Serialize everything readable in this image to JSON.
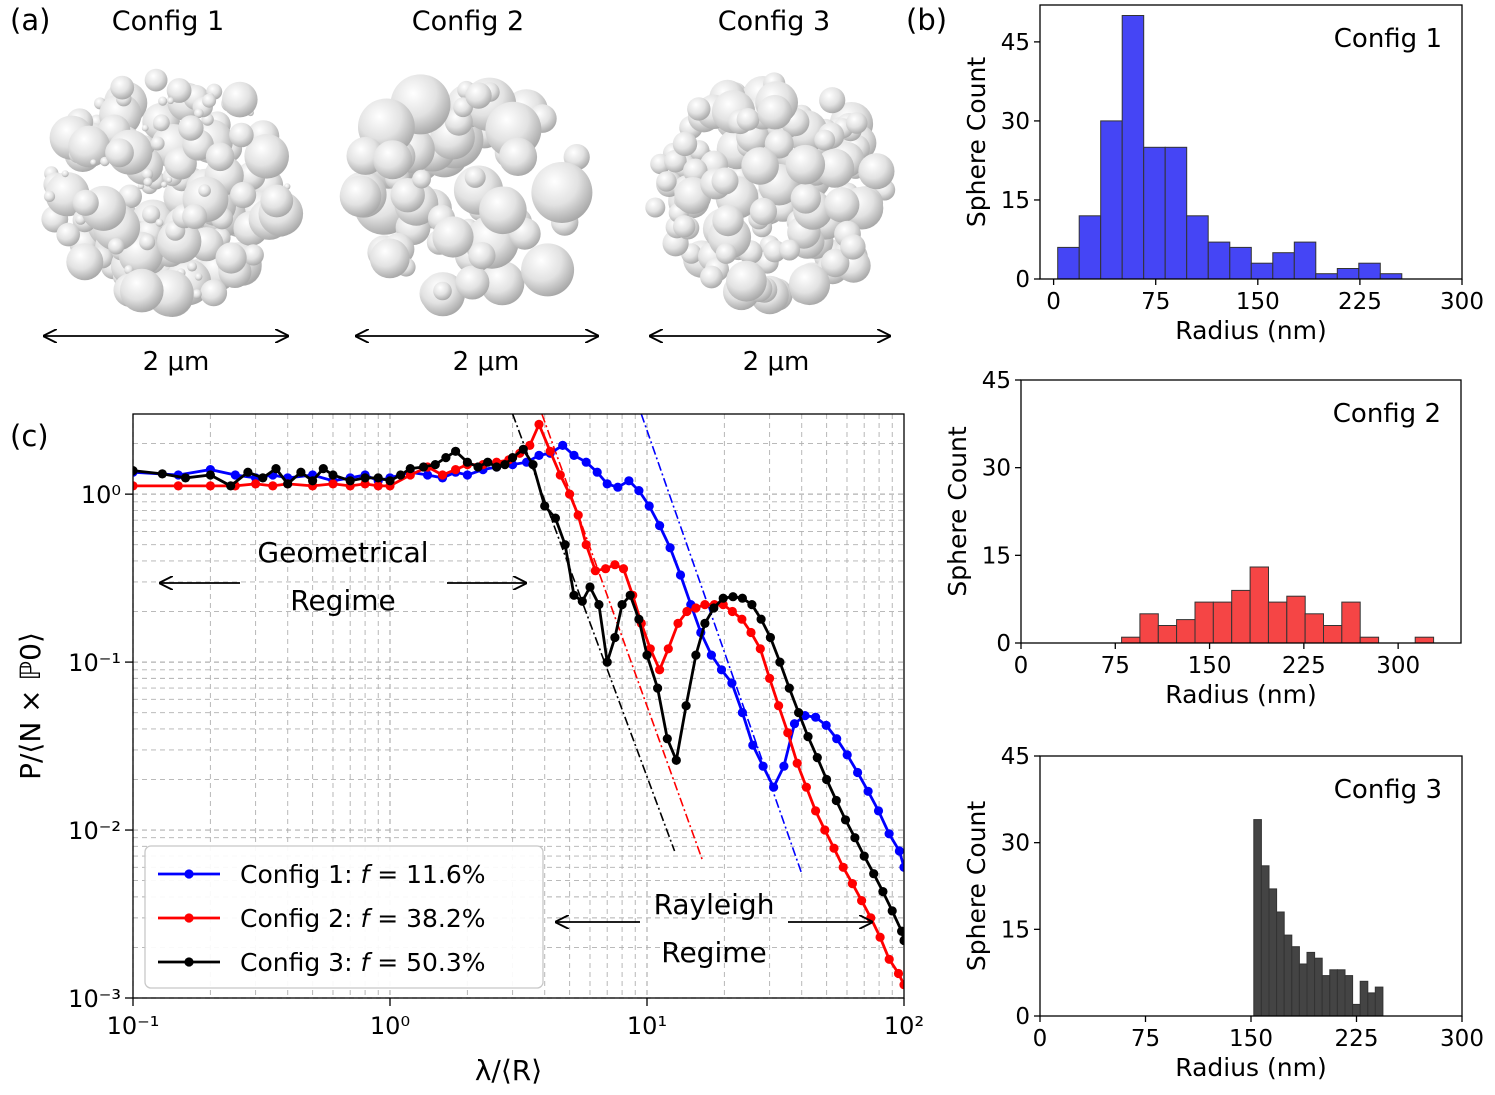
{
  "panels": {
    "a": {
      "label": "(a)",
      "configs": [
        "Config 1",
        "Config 2",
        "Config 3"
      ],
      "scale_label": "2 μm"
    },
    "b": {
      "label": "(b)"
    },
    "c": {
      "label": "(c)"
    }
  },
  "colors": {
    "config1": "#0000ff",
    "config2": "#ff0000",
    "config3": "#000000",
    "bar1": "#4545f5",
    "bar2": "#f54545",
    "bar3": "#444444"
  },
  "chart_data": [
    {
      "id": "hist1",
      "type": "bar",
      "title": "Config 1",
      "xlabel": "Radius (nm)",
      "ylabel": "Sphere Count",
      "xlim": [
        -10,
        300
      ],
      "ylim": [
        0,
        52
      ],
      "xticks": [
        0,
        75,
        150,
        225,
        300
      ],
      "yticks": [
        0,
        15,
        30,
        45
      ],
      "color": "#4545f5",
      "bin_width": 15.8,
      "bin_starts": [
        3,
        18.8,
        34.6,
        50.4,
        66.2,
        82,
        97.8,
        113.6,
        129.4,
        145.2,
        161,
        176.8,
        192.6,
        208.4,
        224.2,
        240
      ],
      "values": [
        6,
        12,
        30,
        50,
        25,
        25,
        12,
        7,
        6,
        3,
        5,
        7,
        1,
        2,
        3,
        1
      ]
    },
    {
      "id": "hist2",
      "type": "bar",
      "title": "Config 2",
      "xlabel": "Radius (nm)",
      "ylabel": "Sphere Count",
      "xlim": [
        0,
        350
      ],
      "ylim": [
        0,
        45
      ],
      "xticks": [
        0,
        75,
        150,
        225,
        300
      ],
      "yticks": [
        0,
        15,
        30,
        45
      ],
      "color": "#f54545",
      "bin_width": 14.6,
      "bin_starts": [
        80,
        94.6,
        109.2,
        123.8,
        138.4,
        153,
        167.6,
        182.2,
        196.8,
        211.4,
        226,
        240.6,
        255.2,
        269.8,
        284.4,
        299,
        313.6,
        328.2
      ],
      "values": [
        1,
        5,
        3,
        4,
        7,
        7,
        9,
        13,
        7,
        8,
        5,
        3,
        7,
        1,
        0,
        0,
        1,
        0
      ]
    },
    {
      "id": "hist3",
      "type": "bar",
      "title": "Config 3",
      "xlabel": "Radius (nm)",
      "ylabel": "Sphere Count",
      "xlim": [
        0,
        300
      ],
      "ylim": [
        0,
        45
      ],
      "xticks": [
        0,
        75,
        150,
        225,
        300
      ],
      "yticks": [
        0,
        15,
        30,
        45
      ],
      "color": "#444444",
      "bin_width": 5.4,
      "bin_starts": [
        152,
        157.4,
        162.8,
        168.2,
        173.6,
        179,
        184.4,
        189.8,
        195.2,
        200.6,
        206,
        211.4,
        216.8,
        222.2,
        227.6,
        233,
        238.4
      ],
      "values": [
        34,
        26,
        22,
        18,
        14,
        12,
        9,
        11,
        10,
        7,
        8,
        8,
        7,
        2,
        6,
        4,
        5
      ]
    },
    {
      "id": "main",
      "type": "line",
      "scale": "log-log",
      "xlabel": "λ/⟨R⟩",
      "ylabel": "P/⟨N × ℙ0⟩",
      "xlim": [
        0.1,
        100
      ],
      "ylim": [
        0.001,
        3
      ],
      "xtick_labels": [
        "10⁻¹",
        "10⁰",
        "10¹",
        "10²"
      ],
      "ytick_labels": [
        "10⁻³",
        "10⁻²",
        "10⁻¹",
        "10⁰"
      ],
      "annotations": {
        "geometrical": [
          "Geometrical",
          "Regime"
        ],
        "rayleigh": [
          "Rayleigh",
          "Regime"
        ]
      },
      "legend_position": "lower-left",
      "series": [
        {
          "name": "Config 1: f = 11.6%",
          "legend_prefix": "Config 1: ",
          "legend_var": "f",
          "legend_suffix": " = 11.6%",
          "color": "#0000ff",
          "points": [
            [
              0.1,
              1.35
            ],
            [
              0.15,
              1.3
            ],
            [
              0.2,
              1.4
            ],
            [
              0.25,
              1.3
            ],
            [
              0.3,
              1.25
            ],
            [
              0.35,
              1.3
            ],
            [
              0.4,
              1.25
            ],
            [
              0.5,
              1.3
            ],
            [
              0.6,
              1.2
            ],
            [
              0.7,
              1.25
            ],
            [
              0.8,
              1.3
            ],
            [
              0.9,
              1.2
            ],
            [
              1.0,
              1.25
            ],
            [
              1.2,
              1.35
            ],
            [
              1.4,
              1.3
            ],
            [
              1.6,
              1.25
            ],
            [
              1.8,
              1.35
            ],
            [
              2.0,
              1.3
            ],
            [
              2.3,
              1.4
            ],
            [
              2.6,
              1.45
            ],
            [
              3.0,
              1.5
            ],
            [
              3.4,
              1.55
            ],
            [
              3.8,
              1.7
            ],
            [
              4.2,
              1.75
            ],
            [
              4.7,
              1.95
            ],
            [
              5.2,
              1.7
            ],
            [
              5.8,
              1.55
            ],
            [
              6.4,
              1.35
            ],
            [
              7.0,
              1.15
            ],
            [
              7.7,
              1.1
            ],
            [
              8.5,
              1.2
            ],
            [
              9.3,
              1.05
            ],
            [
              10.2,
              0.85
            ],
            [
              11.2,
              0.65
            ],
            [
              12.3,
              0.48
            ],
            [
              13.5,
              0.33
            ],
            [
              14.8,
              0.22
            ],
            [
              16.2,
              0.15
            ],
            [
              17.8,
              0.11
            ],
            [
              19.5,
              0.09
            ],
            [
              21.4,
              0.075
            ],
            [
              23.5,
              0.05
            ],
            [
              25.8,
              0.032
            ],
            [
              28.3,
              0.024
            ],
            [
              31.1,
              0.018
            ],
            [
              34.1,
              0.024
            ],
            [
              37.5,
              0.043
            ],
            [
              41.2,
              0.048
            ],
            [
              45.3,
              0.047
            ],
            [
              49.8,
              0.042
            ],
            [
              54.7,
              0.035
            ],
            [
              60.1,
              0.028
            ],
            [
              66,
              0.022
            ],
            [
              72.5,
              0.017
            ],
            [
              79.6,
              0.013
            ],
            [
              87.5,
              0.0095
            ],
            [
              96,
              0.0075
            ],
            [
              100,
              0.006
            ]
          ]
        },
        {
          "name": "Config 2: f = 38.2%",
          "legend_prefix": "Config 2: ",
          "legend_var": "f",
          "legend_suffix": " = 38.2%",
          "color": "#ff0000",
          "points": [
            [
              0.1,
              1.12
            ],
            [
              0.15,
              1.12
            ],
            [
              0.2,
              1.12
            ],
            [
              0.25,
              1.12
            ],
            [
              0.3,
              1.15
            ],
            [
              0.35,
              1.12
            ],
            [
              0.4,
              1.15
            ],
            [
              0.5,
              1.12
            ],
            [
              0.6,
              1.15
            ],
            [
              0.7,
              1.12
            ],
            [
              0.8,
              1.15
            ],
            [
              0.9,
              1.12
            ],
            [
              1.0,
              1.12
            ],
            [
              1.2,
              1.3
            ],
            [
              1.4,
              1.45
            ],
            [
              1.6,
              1.3
            ],
            [
              1.8,
              1.4
            ],
            [
              2.0,
              1.5
            ],
            [
              2.3,
              1.5
            ],
            [
              2.6,
              1.55
            ],
            [
              2.9,
              1.6
            ],
            [
              3.2,
              1.75
            ],
            [
              3.5,
              1.95
            ],
            [
              3.8,
              2.6
            ],
            [
              4.2,
              1.8
            ],
            [
              4.6,
              1.3
            ],
            [
              5.0,
              1.0
            ],
            [
              5.4,
              0.75
            ],
            [
              5.8,
              0.5
            ],
            [
              6.3,
              0.35
            ],
            [
              6.9,
              0.36
            ],
            [
              7.5,
              0.38
            ],
            [
              8.1,
              0.36
            ],
            [
              8.8,
              0.25
            ],
            [
              9.5,
              0.17
            ],
            [
              10.3,
              0.12
            ],
            [
              11.2,
              0.09
            ],
            [
              12.1,
              0.12
            ],
            [
              13.2,
              0.17
            ],
            [
              14.3,
              0.2
            ],
            [
              15.5,
              0.21
            ],
            [
              16.8,
              0.22
            ],
            [
              18.3,
              0.22
            ],
            [
              19.8,
              0.22
            ],
            [
              21.5,
              0.2
            ],
            [
              23.4,
              0.18
            ],
            [
              25.4,
              0.15
            ],
            [
              27.6,
              0.12
            ],
            [
              30,
              0.08
            ],
            [
              32.5,
              0.055
            ],
            [
              35.3,
              0.038
            ],
            [
              38.4,
              0.025
            ],
            [
              41.7,
              0.018
            ],
            [
              45.3,
              0.013
            ],
            [
              49.2,
              0.01
            ],
            [
              53.4,
              0.0078
            ],
            [
              58,
              0.006
            ],
            [
              63,
              0.0048
            ],
            [
              68.4,
              0.0038
            ],
            [
              74.3,
              0.003
            ],
            [
              80.7,
              0.0023
            ],
            [
              87.6,
              0.0017
            ],
            [
              95.2,
              0.0014
            ],
            [
              100,
              0.0012
            ]
          ]
        },
        {
          "name": "Config 3: f = 50.3%",
          "legend_prefix": "Config 3: ",
          "legend_var": "f",
          "legend_suffix": " = 50.3%",
          "color": "#000000",
          "points": [
            [
              0.1,
              1.38
            ],
            [
              0.13,
              1.32
            ],
            [
              0.16,
              1.25
            ],
            [
              0.2,
              1.3
            ],
            [
              0.24,
              1.12
            ],
            [
              0.28,
              1.35
            ],
            [
              0.32,
              1.25
            ],
            [
              0.36,
              1.42
            ],
            [
              0.4,
              1.15
            ],
            [
              0.45,
              1.35
            ],
            [
              0.5,
              1.2
            ],
            [
              0.55,
              1.42
            ],
            [
              0.6,
              1.3
            ],
            [
              0.7,
              1.2
            ],
            [
              0.8,
              1.25
            ],
            [
              0.9,
              1.25
            ],
            [
              1.0,
              1.2
            ],
            [
              1.1,
              1.3
            ],
            [
              1.2,
              1.42
            ],
            [
              1.35,
              1.45
            ],
            [
              1.5,
              1.5
            ],
            [
              1.65,
              1.65
            ],
            [
              1.8,
              1.8
            ],
            [
              2.0,
              1.55
            ],
            [
              2.2,
              1.45
            ],
            [
              2.4,
              1.55
            ],
            [
              2.6,
              1.45
            ],
            [
              2.8,
              1.5
            ],
            [
              3.0,
              1.65
            ],
            [
              3.3,
              1.85
            ],
            [
              3.6,
              1.5
            ],
            [
              4.0,
              0.85
            ],
            [
              4.4,
              0.72
            ],
            [
              4.8,
              0.5
            ],
            [
              5.2,
              0.25
            ],
            [
              5.6,
              0.23
            ],
            [
              6.0,
              0.28
            ],
            [
              6.5,
              0.22
            ],
            [
              7.0,
              0.1
            ],
            [
              7.5,
              0.14
            ],
            [
              8.0,
              0.22
            ],
            [
              8.6,
              0.25
            ],
            [
              9.3,
              0.18
            ],
            [
              10.0,
              0.11
            ],
            [
              11.0,
              0.07
            ],
            [
              12.0,
              0.035
            ],
            [
              13.0,
              0.026
            ],
            [
              14.2,
              0.055
            ],
            [
              15.5,
              0.11
            ],
            [
              16.8,
              0.17
            ],
            [
              18.2,
              0.21
            ],
            [
              19.8,
              0.24
            ],
            [
              21.6,
              0.245
            ],
            [
              23.5,
              0.24
            ],
            [
              25.6,
              0.22
            ],
            [
              27.8,
              0.18
            ],
            [
              30.2,
              0.14
            ],
            [
              32.9,
              0.1
            ],
            [
              35.8,
              0.07
            ],
            [
              38.9,
              0.05
            ],
            [
              42.3,
              0.036
            ],
            [
              46,
              0.027
            ],
            [
              50,
              0.02
            ],
            [
              54.5,
              0.015
            ],
            [
              59.2,
              0.0115
            ],
            [
              64.4,
              0.009
            ],
            [
              70,
              0.007
            ],
            [
              76.2,
              0.0055
            ],
            [
              82.8,
              0.0043
            ],
            [
              90,
              0.0033
            ],
            [
              97.9,
              0.0025
            ],
            [
              100,
              0.0022
            ]
          ]
        }
      ],
      "fit_lines": [
        {
          "color": "#0000ff",
          "points": [
            [
              9.5,
              3.0
            ],
            [
              40,
              0.0055
            ]
          ]
        },
        {
          "color": "#ff0000",
          "points": [
            [
              3.9,
              3.0
            ],
            [
              16.5,
              0.0065
            ]
          ]
        },
        {
          "color": "#000000",
          "points": [
            [
              3.0,
              3.0
            ],
            [
              12.8,
              0.0075
            ]
          ]
        }
      ]
    }
  ]
}
